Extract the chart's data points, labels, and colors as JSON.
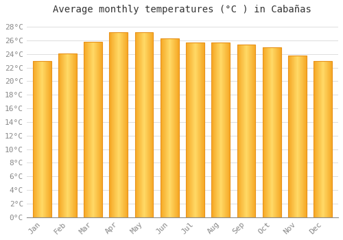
{
  "title": "Average monthly temperatures (°C ) in Cabañas",
  "months": [
    "Jan",
    "Feb",
    "Mar",
    "Apr",
    "May",
    "Jun",
    "Jul",
    "Aug",
    "Sep",
    "Oct",
    "Nov",
    "Dec"
  ],
  "values": [
    23.0,
    24.1,
    25.8,
    27.2,
    27.2,
    26.3,
    25.7,
    25.7,
    25.4,
    25.0,
    23.8,
    23.0
  ],
  "bar_color_left": "#F5A623",
  "bar_color_center": "#FFD966",
  "bar_color_right": "#F5A623",
  "bar_edge_color": "#E8921A",
  "background_color": "#FFFFFF",
  "grid_color": "#DDDDDD",
  "ylim": [
    0,
    29
  ],
  "ytick_step": 2,
  "title_fontsize": 10,
  "tick_fontsize": 8,
  "font_family": "monospace"
}
